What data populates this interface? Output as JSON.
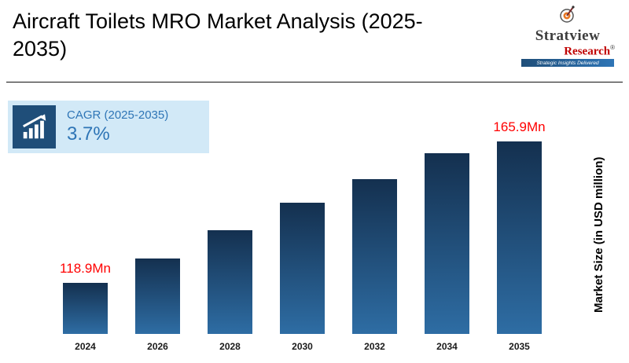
{
  "header": {
    "title": "Aircraft Toilets MRO Market Analysis (2025-2035)",
    "logo": {
      "brand_top": "Stratview",
      "brand_bottom": "Research",
      "registered_mark": "®",
      "tagline": "Strategic Insights Delivered"
    }
  },
  "cagr_box": {
    "label": "CAGR (2025-2035)",
    "value": "3.7%"
  },
  "chart_data": {
    "type": "bar",
    "title": "Aircraft Toilets MRO Market Analysis (2025-2035)",
    "categories": [
      "2024",
      "2026",
      "2028",
      "2030",
      "2032",
      "2034",
      "2035"
    ],
    "values": [
      118.9,
      127.0,
      136.5,
      145.5,
      153.5,
      162.0,
      165.9
    ],
    "point_labels": [
      "118.9Mn",
      "",
      "",
      "",
      "",
      "",
      "165.9Mn"
    ],
    "xlabel": "",
    "ylabel": "Market Size (in USD million)",
    "unit": "USD million",
    "ylim": [
      102,
      166
    ],
    "cagr_2025_2035": "3.7%",
    "grid": false,
    "legend": false,
    "bar_color_top": "#14304f",
    "bar_color_bottom": "#2e6da4",
    "data_label_color": "#ff0000",
    "accent_color": "#2e75b6",
    "cagr_box_bg": "#d2e9f7",
    "cagr_icon_bg": "#1f4e79"
  }
}
